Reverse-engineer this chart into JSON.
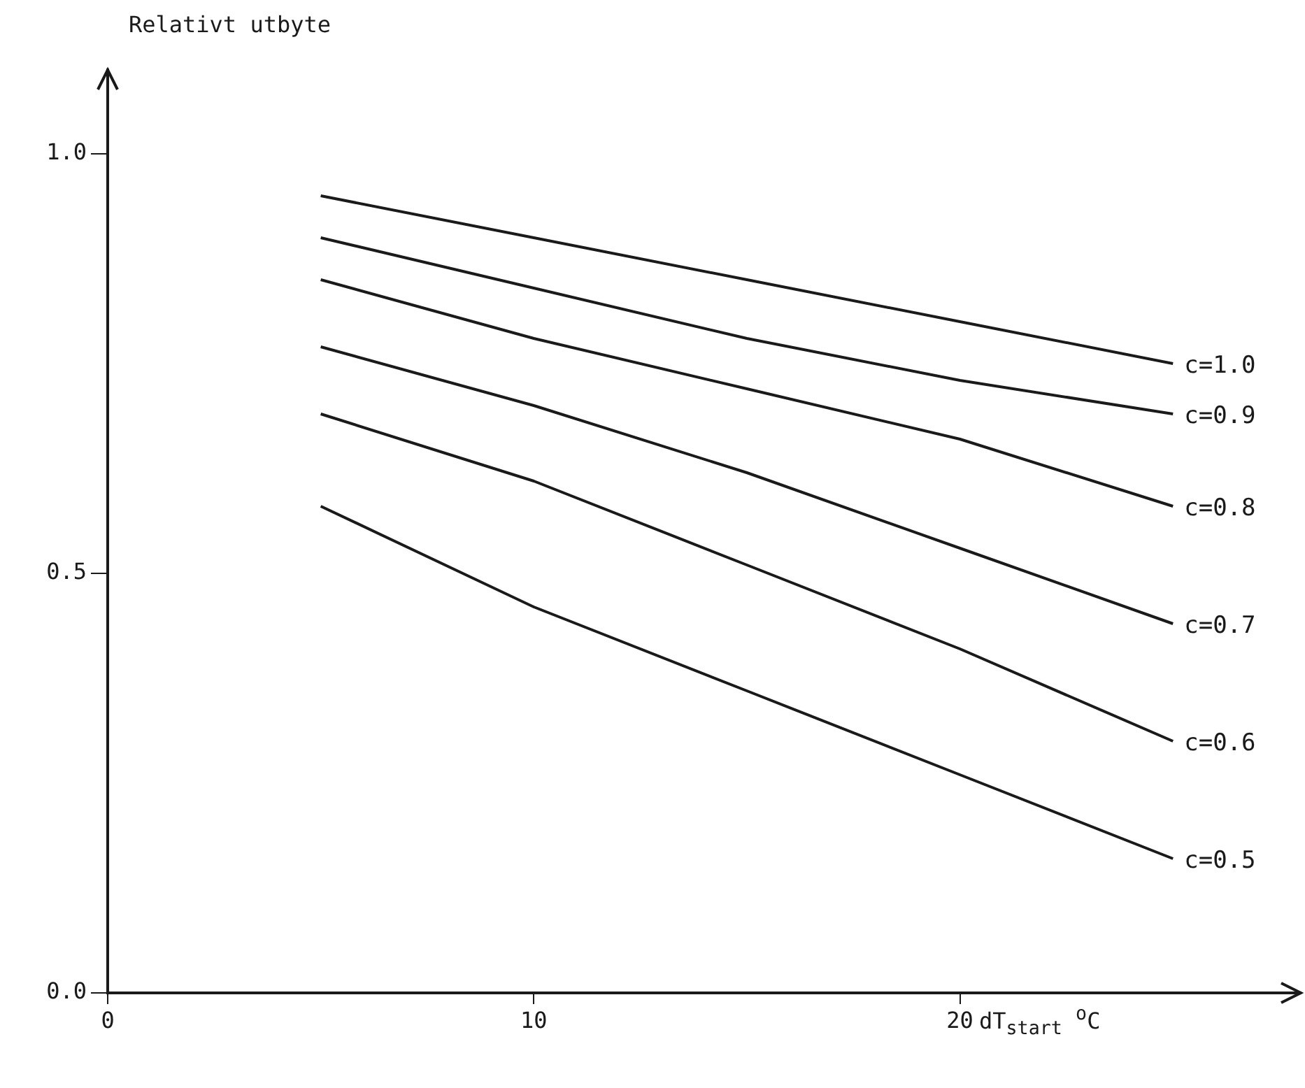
{
  "chart_data": {
    "type": "line",
    "ylabel": "Relativt utbyte",
    "xlabel": "dT$_{start}$ $^{o}$C",
    "x": [
      5,
      10,
      15,
      20,
      25
    ],
    "xlim": [
      0,
      28
    ],
    "xticks": [
      0,
      10,
      20
    ],
    "ylim": [
      0,
      1.1
    ],
    "yticks": [
      {
        "value": 0,
        "label": "0.0"
      },
      {
        "value": 0.5,
        "label": "0.5"
      },
      {
        "value": 1,
        "label": "1.0"
      }
    ],
    "marker": "none",
    "line_style": "solid",
    "legend": false,
    "series": [
      {
        "name": "c=1.0",
        "color": "#1a1a1a",
        "values": [
          0.95,
          0.9,
          0.85,
          0.8,
          0.75
        ]
      },
      {
        "name": "c=0.9",
        "color": "#1a1a1a",
        "values": [
          0.9,
          0.84,
          0.78,
          0.73,
          0.69
        ]
      },
      {
        "name": "c=0.8",
        "color": "#1a1a1a",
        "values": [
          0.85,
          0.78,
          0.72,
          0.66,
          0.58
        ]
      },
      {
        "name": "c=0.7",
        "color": "#1a1a1a",
        "values": [
          0.77,
          0.7,
          0.62,
          0.53,
          0.44
        ]
      },
      {
        "name": "c=0.6",
        "color": "#1a1a1a",
        "values": [
          0.69,
          0.61,
          0.51,
          0.41,
          0.3
        ]
      },
      {
        "name": "c=0.5",
        "color": "#1a1a1a",
        "values": [
          0.58,
          0.46,
          0.36,
          0.26,
          0.16
        ]
      }
    ]
  }
}
